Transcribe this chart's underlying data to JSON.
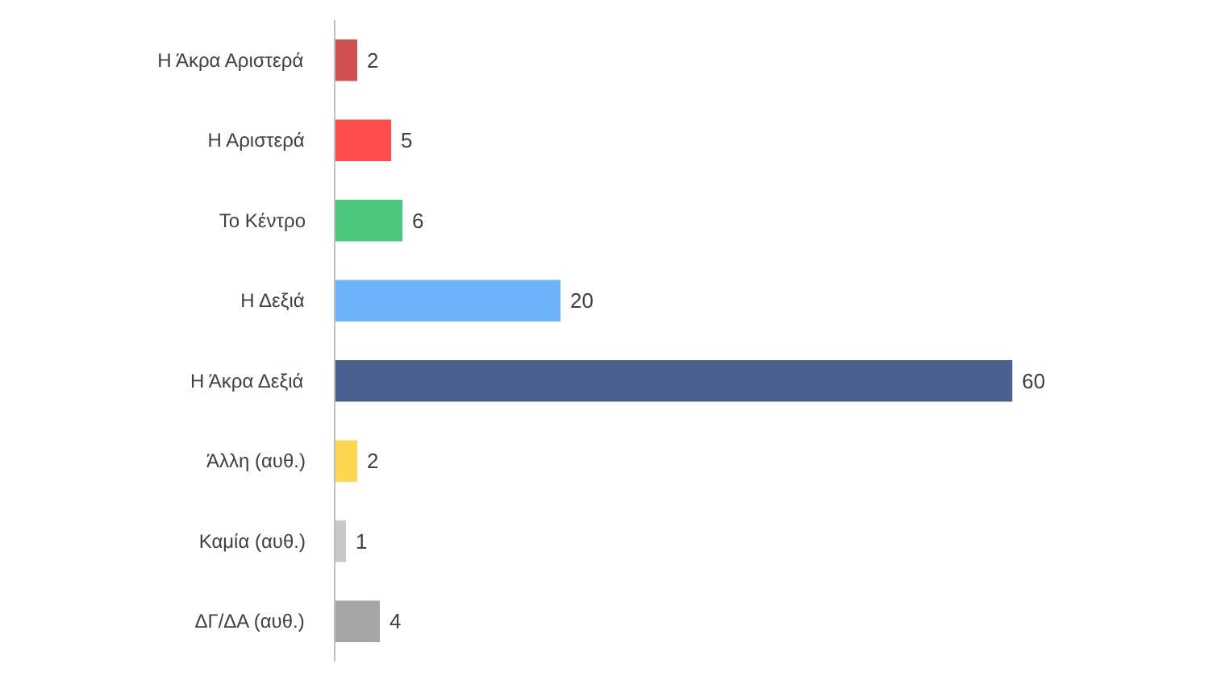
{
  "chart_data": {
    "type": "bar",
    "orientation": "horizontal",
    "data_labels": true,
    "categories": [
      "Η Άκρα Αριστερά",
      "Η Αριστερά",
      "Το Κέντρο",
      "Η Δεξιά",
      "Η Άκρα Δεξιά",
      "Άλλη (αυθ.)",
      "Καμία (αυθ.)",
      "ΔΓ/ΔΑ (αυθ.)"
    ],
    "values": [
      2,
      5,
      6,
      20,
      60,
      2,
      1,
      4
    ],
    "colors": [
      "#d05050",
      "#ff4d4d",
      "#4cc87e",
      "#6db3fb",
      "#4a6190",
      "#ffd650",
      "#c8c8c8",
      "#a6a6a6"
    ]
  }
}
